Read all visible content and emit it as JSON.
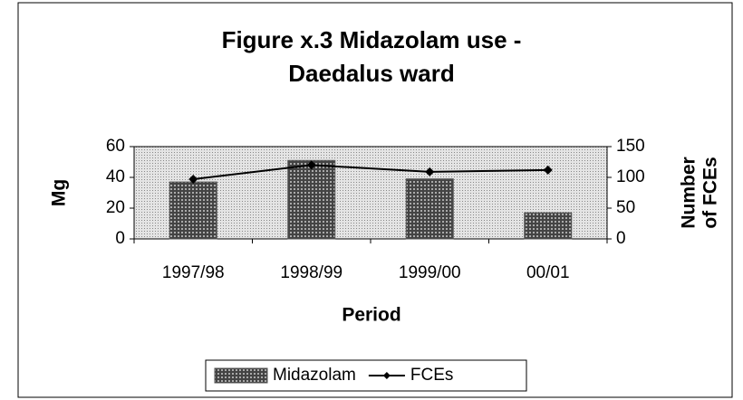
{
  "chart_data": {
    "type": "bar-line",
    "title": [
      "Figure x.3 Midazolam use -",
      "Daedalus ward"
    ],
    "xlabel": "Period",
    "ylabel": "Mg",
    "y2label": [
      "Number",
      "of FCEs"
    ],
    "categories": [
      "1997/98",
      "1998/99",
      "1999/00",
      "00/01"
    ],
    "series": [
      {
        "name": "Midazolam",
        "type": "bar",
        "color": "#555555",
        "values": [
          37,
          51,
          39,
          17
        ]
      },
      {
        "name": "FCEs",
        "type": "line",
        "axis": "y2",
        "color": "#000000",
        "values": [
          97,
          120,
          109,
          112
        ]
      }
    ],
    "ylim": [
      0,
      60
    ],
    "yticks": [
      0,
      20,
      40,
      60
    ],
    "y2lim": [
      0,
      150
    ],
    "y2ticks": [
      0,
      50,
      100,
      150
    ],
    "legend": "bottom"
  }
}
